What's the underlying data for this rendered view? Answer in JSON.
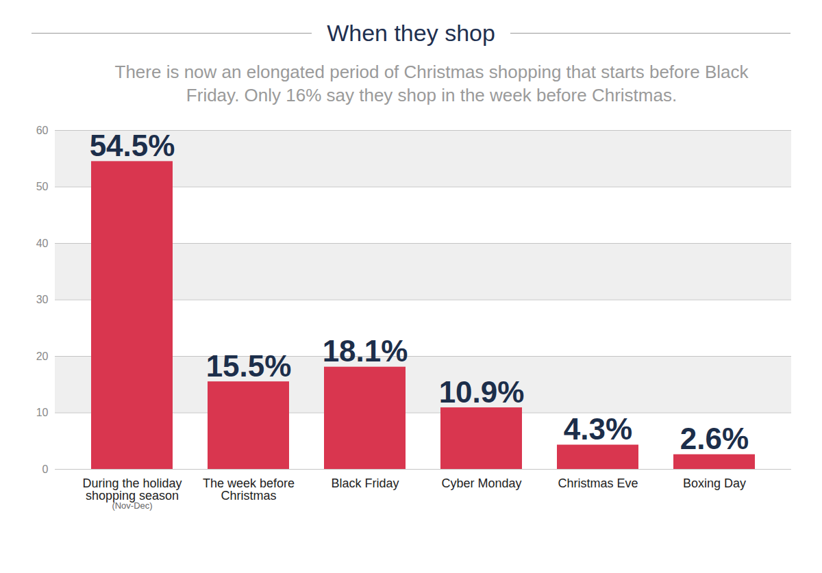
{
  "chart_data": {
    "type": "bar",
    "title": "When they shop",
    "subtitle": "There is now an elongated period of Christmas shopping that starts before Black Friday. Only 16% say they shop in the week before Christmas.",
    "categories": [
      "During the holiday shopping season (Nov-Dec)",
      "The week before Christmas",
      "Black Friday",
      "Cyber Monday",
      "Christmas Eve",
      "Boxing Day"
    ],
    "values": [
      54.5,
      15.5,
      18.1,
      10.9,
      4.3,
      2.6
    ],
    "value_labels": [
      "54.5%",
      "15.5%",
      "18.1%",
      "10.9%",
      "4.3%",
      "2.6%"
    ],
    "color": "#d9364f",
    "ylim": [
      0,
      60
    ],
    "yticks": [
      0,
      10,
      20,
      30,
      40,
      50,
      60
    ],
    "grid": true,
    "data_labels": true
  }
}
